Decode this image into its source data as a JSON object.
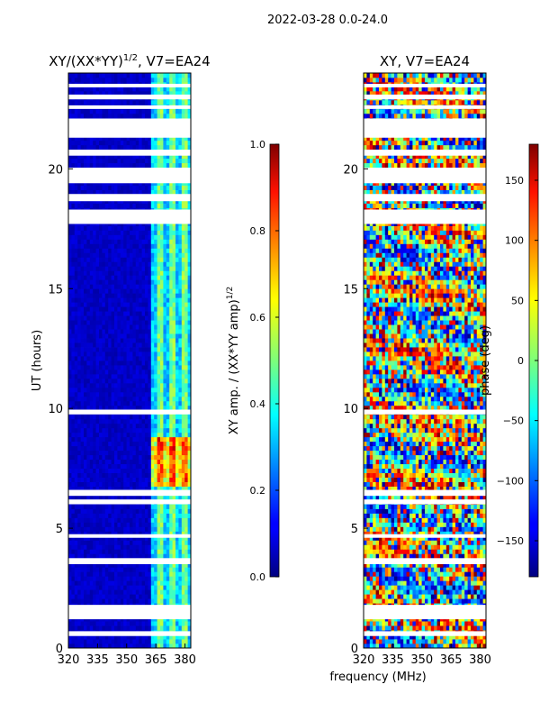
{
  "figure": {
    "suptitle": "2022-03-28 0.0-24.0",
    "shared_xlabel": "frequency (MHz)"
  },
  "chart_data": [
    {
      "type": "heatmap",
      "title_main": "XY/(XX*YY)",
      "title_sup": "1/2",
      "title_rest": ", V7=EA24",
      "xlabel": "",
      "ylabel": "UT (hours)",
      "xlim": [
        320,
        383
      ],
      "ylim": [
        0,
        24
      ],
      "xticks": [
        "320",
        "335",
        "350",
        "365",
        "380"
      ],
      "yticks": [
        "0",
        "5",
        "10",
        "15",
        "20"
      ],
      "colormap": "jet",
      "colorbar": {
        "label_main": "XY amp. / (XX*YY amp)",
        "label_sup": "1/2",
        "range": [
          0.0,
          1.0
        ],
        "ticks": [
          "0.0",
          "0.2",
          "0.4",
          "0.6",
          "0.8",
          "1.0"
        ]
      },
      "flagged_ut_gaps_hours": [
        [
          0.5,
          0.7
        ],
        [
          1.2,
          1.8
        ],
        [
          3.5,
          3.75
        ],
        [
          4.6,
          4.75
        ],
        [
          6.0,
          6.2
        ],
        [
          6.35,
          6.6
        ],
        [
          9.75,
          9.95
        ],
        [
          17.7,
          18.3
        ],
        [
          18.65,
          18.95
        ],
        [
          19.4,
          20.05
        ],
        [
          20.55,
          20.8
        ],
        [
          21.3,
          22.1
        ],
        [
          22.5,
          22.65
        ],
        [
          22.9,
          23.1
        ],
        [
          23.4,
          23.55
        ]
      ],
      "notes": "Low amplitude (~0.05) from 320-363 MHz; bright channels (~0.2-0.6) at 363-383 MHz, peaking ~0.7-0.8 near 7-8.5 h."
    },
    {
      "type": "heatmap",
      "title_main": "XY, V7=EA24",
      "title_sup": "",
      "title_rest": "",
      "xlabel": "frequency (MHz)",
      "ylabel": "",
      "xlim": [
        320,
        383
      ],
      "ylim": [
        0,
        24
      ],
      "xticks": [
        "320",
        "335",
        "350",
        "365",
        "380"
      ],
      "yticks": [
        "0",
        "5",
        "10",
        "15",
        "20"
      ],
      "colormap": "jet",
      "colorbar": {
        "label_main": "phase (deg)",
        "label_sup": "",
        "range": [
          -180,
          180
        ],
        "ticks": [
          "−150",
          "−100",
          "−50",
          "0",
          "50",
          "100",
          "150"
        ]
      },
      "flagged_ut_gaps_hours": [
        [
          0.5,
          0.7
        ],
        [
          1.2,
          1.8
        ],
        [
          3.5,
          3.75
        ],
        [
          4.6,
          4.75
        ],
        [
          6.0,
          6.2
        ],
        [
          6.35,
          6.6
        ],
        [
          9.75,
          9.95
        ],
        [
          17.7,
          18.3
        ],
        [
          18.65,
          18.95
        ],
        [
          19.4,
          20.05
        ],
        [
          20.55,
          20.8
        ],
        [
          21.3,
          22.1
        ],
        [
          22.5,
          22.65
        ],
        [
          22.9,
          23.1
        ],
        [
          23.4,
          23.55
        ]
      ],
      "notes": "Phase spans full -180 to 180 deg, noisy with stripes across UT."
    }
  ]
}
